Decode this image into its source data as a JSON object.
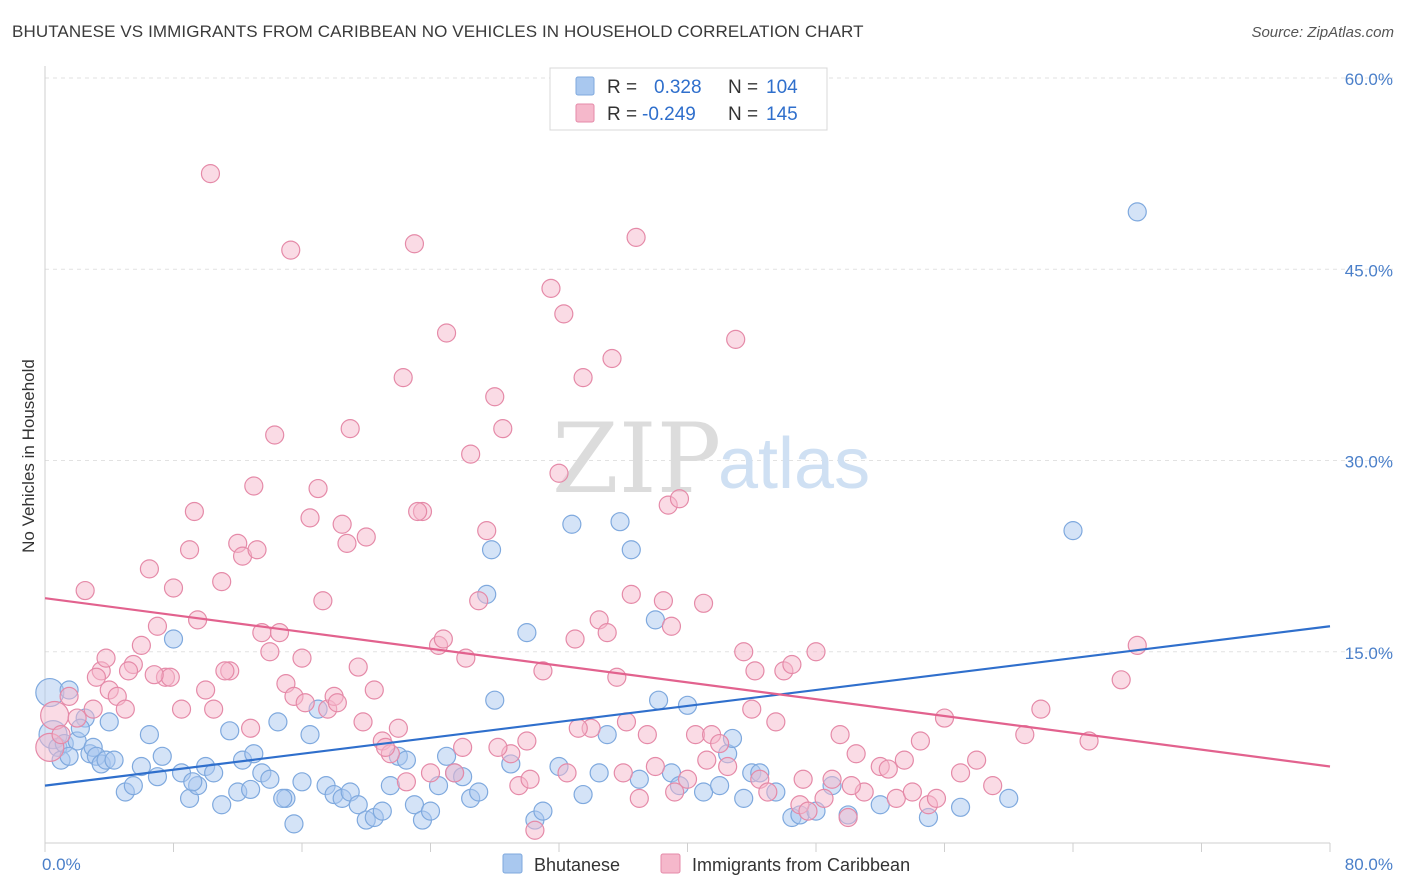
{
  "title": "BHUTANESE VS IMMIGRANTS FROM CARIBBEAN NO VEHICLES IN HOUSEHOLD CORRELATION CHART",
  "source": "Source: ZipAtlas.com",
  "watermark": {
    "zip": "ZIP",
    "atlas": "atlas"
  },
  "chart_data": {
    "type": "scatter",
    "ylabel": "No Vehicles in Household",
    "xlim": [
      0,
      80
    ],
    "ylim": [
      0,
      60
    ],
    "x_tick_labels": [
      "0.0%",
      "80.0%"
    ],
    "y_ticks": [
      15,
      30,
      45,
      60
    ],
    "y_tick_labels": [
      "15.0%",
      "30.0%",
      "45.0%",
      "60.0%"
    ],
    "grid": true,
    "legend_top": {
      "r_label": "R =",
      "n_label": "N =",
      "rows": [
        {
          "r": "0.328",
          "n": "104",
          "color": "#a9c8ef"
        },
        {
          "r": "-0.249",
          "n": "145",
          "color": "#f5b8cb"
        }
      ]
    },
    "series": [
      {
        "name": "Bhutanese",
        "color": "#a9c8ef",
        "stroke": "#7fa9de",
        "line_color": "#2f6fcc",
        "trend": [
          [
            0,
            4.5
          ],
          [
            80,
            17.0
          ]
        ],
        "points": [
          [
            0.3,
            11.8
          ],
          [
            0.5,
            8.5
          ],
          [
            0.8,
            7.5
          ],
          [
            1.0,
            6.5
          ],
          [
            1.2,
            7.8
          ],
          [
            1.5,
            12.0
          ],
          [
            2.0,
            8.0
          ],
          [
            2.5,
            9.8
          ],
          [
            2.8,
            7.0
          ],
          [
            3.0,
            7.5
          ],
          [
            3.2,
            6.8
          ],
          [
            3.5,
            6.2
          ],
          [
            3.8,
            6.5
          ],
          [
            4.0,
            9.5
          ],
          [
            4.3,
            6.5
          ],
          [
            5.0,
            4.0
          ],
          [
            5.5,
            4.5
          ],
          [
            6.0,
            6.0
          ],
          [
            6.5,
            8.5
          ],
          [
            7.0,
            5.2
          ],
          [
            7.3,
            6.8
          ],
          [
            8.0,
            16.0
          ],
          [
            8.5,
            5.5
          ],
          [
            9.0,
            3.5
          ],
          [
            9.5,
            4.5
          ],
          [
            10.0,
            6.0
          ],
          [
            10.5,
            5.5
          ],
          [
            11.0,
            3.0
          ],
          [
            11.5,
            8.8
          ],
          [
            12.0,
            4.0
          ],
          [
            12.3,
            6.5
          ],
          [
            12.8,
            4.2
          ],
          [
            13.0,
            7.0
          ],
          [
            13.5,
            5.5
          ],
          [
            14.0,
            5.0
          ],
          [
            14.5,
            9.5
          ],
          [
            15.0,
            3.5
          ],
          [
            15.5,
            1.5
          ],
          [
            16.0,
            4.8
          ],
          [
            16.5,
            8.5
          ],
          [
            17.0,
            10.5
          ],
          [
            17.5,
            4.5
          ],
          [
            18.0,
            3.8
          ],
          [
            18.5,
            3.5
          ],
          [
            19.0,
            4.0
          ],
          [
            19.5,
            3.0
          ],
          [
            20.0,
            1.8
          ],
          [
            20.5,
            2.0
          ],
          [
            21.0,
            2.5
          ],
          [
            21.5,
            4.5
          ],
          [
            22.0,
            6.8
          ],
          [
            22.5,
            6.5
          ],
          [
            23.0,
            3.0
          ],
          [
            23.5,
            1.8
          ],
          [
            24.0,
            2.5
          ],
          [
            24.5,
            4.5
          ],
          [
            25.0,
            6.8
          ],
          [
            25.5,
            5.5
          ],
          [
            26.0,
            5.2
          ],
          [
            26.5,
            3.5
          ],
          [
            27.0,
            4.0
          ],
          [
            27.5,
            19.5
          ],
          [
            27.8,
            23.0
          ],
          [
            28.0,
            11.2
          ],
          [
            29.0,
            6.2
          ],
          [
            30.0,
            16.5
          ],
          [
            30.5,
            1.8
          ],
          [
            31.0,
            2.5
          ],
          [
            32.0,
            6.0
          ],
          [
            32.8,
            25.0
          ],
          [
            33.5,
            3.8
          ],
          [
            34.5,
            5.5
          ],
          [
            35.0,
            8.5
          ],
          [
            35.8,
            25.2
          ],
          [
            36.5,
            23.0
          ],
          [
            37.0,
            5.0
          ],
          [
            38.0,
            17.5
          ],
          [
            38.2,
            11.2
          ],
          [
            39.0,
            5.5
          ],
          [
            39.5,
            4.5
          ],
          [
            40.0,
            10.8
          ],
          [
            41.0,
            4.0
          ],
          [
            42.0,
            4.5
          ],
          [
            42.5,
            7.0
          ],
          [
            42.8,
            8.2
          ],
          [
            43.5,
            3.5
          ],
          [
            44.0,
            5.5
          ],
          [
            44.5,
            5.5
          ],
          [
            45.5,
            4.0
          ],
          [
            46.5,
            2.0
          ],
          [
            47.0,
            2.2
          ],
          [
            48.0,
            2.5
          ],
          [
            49.0,
            4.5
          ],
          [
            50.0,
            2.2
          ],
          [
            52.0,
            3.0
          ],
          [
            55.0,
            2.0
          ],
          [
            57.0,
            2.8
          ],
          [
            60.0,
            3.5
          ],
          [
            64.0,
            24.5
          ],
          [
            68.0,
            49.5
          ],
          [
            1.5,
            6.8
          ],
          [
            2.2,
            9.0
          ],
          [
            9.2,
            4.8
          ],
          [
            14.8,
            3.5
          ]
        ]
      },
      {
        "name": "Immigrants from Caribbean",
        "color": "#f5b8cb",
        "stroke": "#e58aa8",
        "line_color": "#e2628e",
        "trend": [
          [
            0,
            19.2
          ],
          [
            80,
            6.0
          ]
        ],
        "points": [
          [
            0.3,
            7.5
          ],
          [
            0.6,
            10.0
          ],
          [
            1.0,
            8.5
          ],
          [
            1.5,
            11.5
          ],
          [
            2.0,
            9.8
          ],
          [
            2.5,
            19.8
          ],
          [
            3.0,
            10.5
          ],
          [
            3.5,
            13.5
          ],
          [
            3.8,
            14.5
          ],
          [
            4.0,
            12.0
          ],
          [
            4.5,
            11.5
          ],
          [
            5.0,
            10.5
          ],
          [
            5.5,
            14.0
          ],
          [
            6.0,
            15.5
          ],
          [
            6.5,
            21.5
          ],
          [
            7.0,
            17.0
          ],
          [
            7.5,
            13.0
          ],
          [
            8.0,
            20.0
          ],
          [
            8.5,
            10.5
          ],
          [
            9.0,
            23.0
          ],
          [
            9.3,
            26.0
          ],
          [
            9.5,
            17.5
          ],
          [
            10.0,
            12.0
          ],
          [
            10.3,
            52.5
          ],
          [
            10.5,
            10.5
          ],
          [
            11.0,
            20.5
          ],
          [
            11.5,
            13.5
          ],
          [
            12.0,
            23.5
          ],
          [
            12.3,
            22.5
          ],
          [
            12.8,
            9.0
          ],
          [
            13.0,
            28.0
          ],
          [
            13.5,
            16.5
          ],
          [
            14.0,
            15.0
          ],
          [
            14.3,
            32.0
          ],
          [
            14.6,
            16.5
          ],
          [
            15.0,
            12.5
          ],
          [
            15.3,
            46.5
          ],
          [
            15.5,
            11.5
          ],
          [
            16.0,
            14.5
          ],
          [
            16.5,
            25.5
          ],
          [
            17.0,
            27.8
          ],
          [
            17.3,
            19.0
          ],
          [
            17.6,
            10.5
          ],
          [
            18.0,
            11.5
          ],
          [
            18.5,
            25.0
          ],
          [
            18.8,
            23.5
          ],
          [
            19.0,
            32.5
          ],
          [
            19.5,
            13.8
          ],
          [
            20.0,
            24.0
          ],
          [
            20.5,
            12.0
          ],
          [
            21.0,
            8.0
          ],
          [
            21.5,
            7.0
          ],
          [
            22.0,
            9.0
          ],
          [
            22.3,
            36.5
          ],
          [
            22.5,
            4.8
          ],
          [
            23.0,
            47.0
          ],
          [
            23.5,
            26.0
          ],
          [
            24.0,
            5.5
          ],
          [
            24.5,
            15.5
          ],
          [
            25.0,
            40.0
          ],
          [
            25.5,
            5.5
          ],
          [
            26.0,
            7.5
          ],
          [
            26.5,
            30.5
          ],
          [
            27.0,
            19.0
          ],
          [
            27.5,
            24.5
          ],
          [
            28.0,
            35.0
          ],
          [
            28.5,
            32.5
          ],
          [
            29.0,
            7.0
          ],
          [
            29.5,
            4.5
          ],
          [
            30.0,
            8.0
          ],
          [
            30.5,
            1.0
          ],
          [
            31.0,
            13.5
          ],
          [
            31.5,
            43.5
          ],
          [
            32.0,
            29.0
          ],
          [
            32.3,
            41.5
          ],
          [
            32.5,
            5.5
          ],
          [
            33.0,
            16.0
          ],
          [
            33.5,
            36.5
          ],
          [
            34.0,
            9.0
          ],
          [
            34.5,
            17.5
          ],
          [
            35.0,
            16.5
          ],
          [
            35.3,
            38.0
          ],
          [
            35.6,
            13.0
          ],
          [
            36.0,
            5.5
          ],
          [
            36.5,
            19.5
          ],
          [
            36.8,
            47.5
          ],
          [
            37.0,
            3.5
          ],
          [
            37.5,
            8.5
          ],
          [
            38.0,
            6.0
          ],
          [
            38.5,
            19.0
          ],
          [
            38.8,
            26.5
          ],
          [
            39.0,
            17.0
          ],
          [
            39.5,
            27.0
          ],
          [
            40.0,
            5.0
          ],
          [
            40.5,
            8.5
          ],
          [
            41.0,
            18.8
          ],
          [
            41.5,
            8.5
          ],
          [
            42.0,
            7.8
          ],
          [
            42.5,
            6.0
          ],
          [
            43.0,
            39.5
          ],
          [
            43.5,
            15.0
          ],
          [
            44.0,
            10.5
          ],
          [
            44.5,
            5.0
          ],
          [
            45.0,
            4.0
          ],
          [
            45.5,
            9.5
          ],
          [
            46.0,
            13.5
          ],
          [
            46.5,
            14.0
          ],
          [
            47.0,
            3.0
          ],
          [
            47.5,
            2.5
          ],
          [
            48.0,
            15.0
          ],
          [
            48.5,
            3.5
          ],
          [
            49.0,
            5.0
          ],
          [
            49.5,
            8.5
          ],
          [
            50.0,
            2.0
          ],
          [
            50.5,
            7.0
          ],
          [
            51.0,
            4.0
          ],
          [
            52.0,
            6.0
          ],
          [
            53.0,
            3.5
          ],
          [
            53.5,
            6.5
          ],
          [
            54.0,
            4.0
          ],
          [
            55.0,
            3.0
          ],
          [
            55.5,
            3.5
          ],
          [
            56.0,
            9.8
          ],
          [
            57.0,
            5.5
          ],
          [
            58.0,
            6.5
          ],
          [
            59.0,
            4.5
          ],
          [
            61.0,
            8.5
          ],
          [
            62.0,
            10.5
          ],
          [
            65.0,
            8.0
          ],
          [
            67.0,
            12.8
          ],
          [
            68.0,
            15.5
          ],
          [
            5.2,
            13.5
          ],
          [
            7.8,
            13.0
          ],
          [
            11.2,
            13.5
          ],
          [
            13.2,
            23.0
          ],
          [
            16.2,
            11.0
          ],
          [
            18.2,
            11.0
          ],
          [
            21.2,
            7.5
          ],
          [
            23.2,
            26.0
          ],
          [
            24.8,
            16.0
          ],
          [
            26.2,
            14.5
          ],
          [
            28.2,
            7.5
          ],
          [
            30.2,
            5.0
          ],
          [
            33.2,
            9.0
          ],
          [
            36.2,
            9.5
          ],
          [
            39.2,
            4.0
          ],
          [
            41.2,
            6.5
          ],
          [
            44.2,
            13.5
          ],
          [
            47.2,
            5.0
          ],
          [
            50.2,
            4.5
          ],
          [
            52.5,
            5.8
          ],
          [
            54.5,
            8.0
          ],
          [
            3.2,
            13.0
          ],
          [
            6.8,
            13.2
          ],
          [
            19.8,
            9.5
          ]
        ]
      }
    ]
  }
}
